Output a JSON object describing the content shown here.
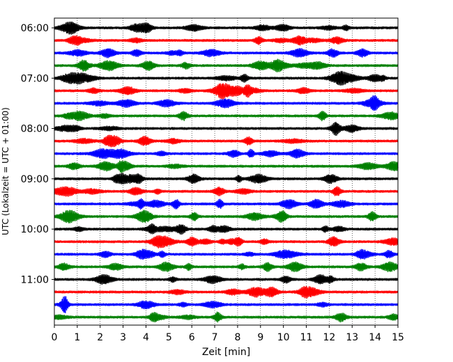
{
  "chart_data": {
    "type": "line",
    "xlabel": "Zeit  [min]",
    "ylabel": "UTC (Lokalzeit = UTC + 01:00)",
    "xlim": [
      0,
      15
    ],
    "x_ticks": [
      "0",
      "1",
      "2",
      "3",
      "4",
      "5",
      "6",
      "7",
      "8",
      "9",
      "10",
      "11",
      "12",
      "13",
      "14",
      "15"
    ],
    "y_ticks": [
      "06:00",
      "07:00",
      "08:00",
      "09:00",
      "10:00",
      "11:00"
    ],
    "grid": "vertical dotted at each minute",
    "trace_interval_minutes": 15,
    "trace_colors": [
      "#000000",
      "#ff0000",
      "#0000ff",
      "#008000"
    ],
    "series": [
      {
        "start": "06:00",
        "color": "#000000"
      },
      {
        "start": "06:15",
        "color": "#ff0000"
      },
      {
        "start": "06:30",
        "color": "#0000ff"
      },
      {
        "start": "06:45",
        "color": "#008000"
      },
      {
        "start": "07:00",
        "color": "#000000"
      },
      {
        "start": "07:15",
        "color": "#ff0000"
      },
      {
        "start": "07:30",
        "color": "#0000ff"
      },
      {
        "start": "07:45",
        "color": "#008000"
      },
      {
        "start": "08:00",
        "color": "#000000"
      },
      {
        "start": "08:15",
        "color": "#ff0000"
      },
      {
        "start": "08:30",
        "color": "#0000ff"
      },
      {
        "start": "08:45",
        "color": "#008000"
      },
      {
        "start": "09:00",
        "color": "#000000"
      },
      {
        "start": "09:15",
        "color": "#ff0000"
      },
      {
        "start": "09:30",
        "color": "#0000ff"
      },
      {
        "start": "09:45",
        "color": "#008000"
      },
      {
        "start": "10:00",
        "color": "#000000"
      },
      {
        "start": "10:15",
        "color": "#ff0000"
      },
      {
        "start": "10:30",
        "color": "#0000ff"
      },
      {
        "start": "10:45",
        "color": "#008000"
      },
      {
        "start": "11:00",
        "color": "#000000"
      },
      {
        "start": "11:15",
        "color": "#ff0000"
      },
      {
        "start": "11:30",
        "color": "#0000ff"
      },
      {
        "start": "11:45",
        "color": "#008000"
      }
    ]
  }
}
